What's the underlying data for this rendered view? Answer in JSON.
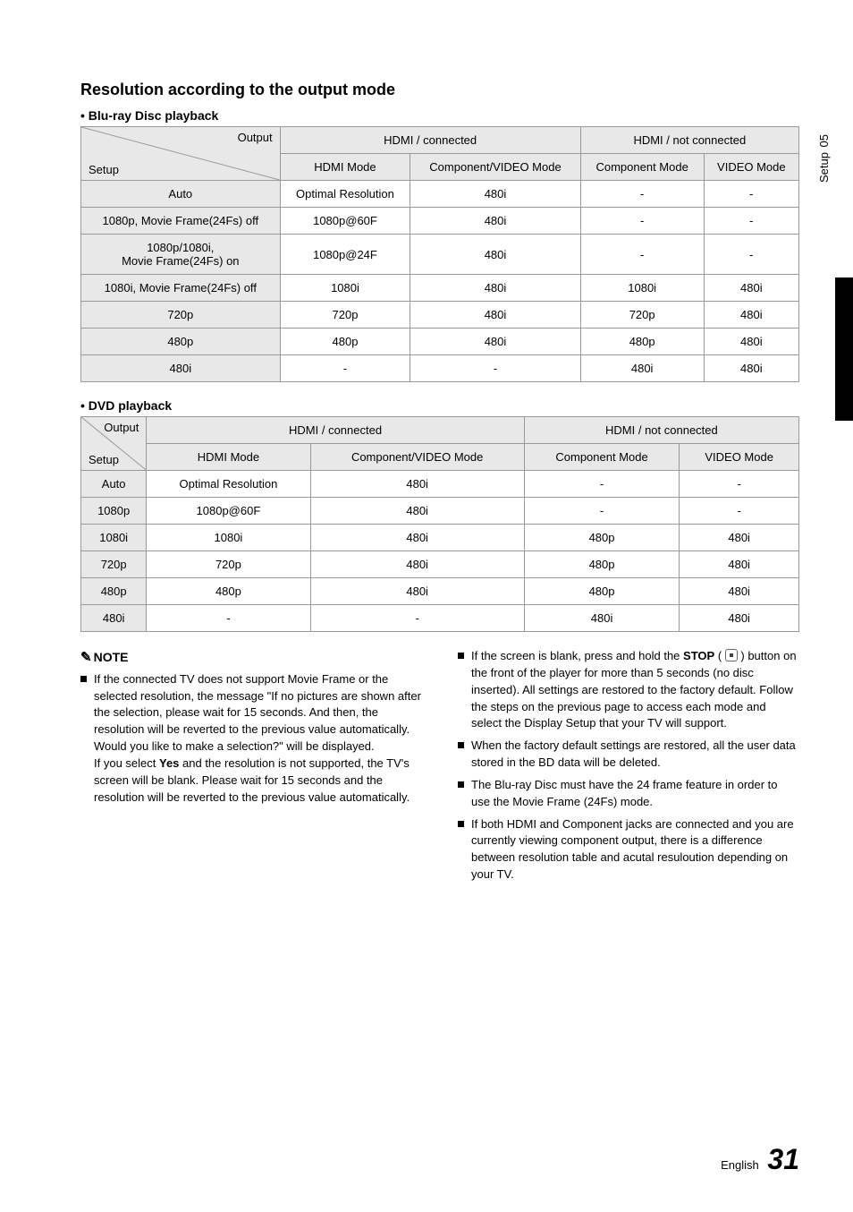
{
  "sideTab": {
    "num": "05",
    "label": "Setup"
  },
  "section": {
    "title": "Resolution according to the output mode"
  },
  "table1": {
    "caption": "• Blu-ray Disc playback",
    "diag": {
      "output": "Output",
      "setup": "Setup"
    },
    "topHeaders": [
      "HDMI / connected",
      "HDMI / not connected"
    ],
    "subHeaders": [
      "HDMI Mode",
      "Component/VIDEO Mode",
      "Component Mode",
      "VIDEO Mode"
    ],
    "rows": [
      {
        "label": "Auto",
        "cells": [
          "Optimal Resolution",
          "480i",
          "-",
          "-"
        ]
      },
      {
        "label": "1080p, Movie Frame(24Fs) off",
        "cells": [
          "1080p@60F",
          "480i",
          "-",
          "-"
        ]
      },
      {
        "label": "1080p/1080i,\nMovie Frame(24Fs) on",
        "cells": [
          "1080p@24F",
          "480i",
          "-",
          "-"
        ]
      },
      {
        "label": "1080i, Movie Frame(24Fs) off",
        "cells": [
          "1080i",
          "480i",
          "1080i",
          "480i"
        ]
      },
      {
        "label": "720p",
        "cells": [
          "720p",
          "480i",
          "720p",
          "480i"
        ]
      },
      {
        "label": "480p",
        "cells": [
          "480p",
          "480i",
          "480p",
          "480i"
        ]
      },
      {
        "label": "480i",
        "cells": [
          "-",
          "-",
          "480i",
          "480i"
        ]
      }
    ]
  },
  "table2": {
    "caption": "• DVD playback",
    "diag": {
      "output": "Output",
      "setup": "Setup"
    },
    "topHeaders": [
      "HDMI / connected",
      "HDMI / not connected"
    ],
    "subHeaders": [
      "HDMI Mode",
      "Component/VIDEO Mode",
      "Component Mode",
      "VIDEO Mode"
    ],
    "rows": [
      {
        "label": "Auto",
        "cells": [
          "Optimal Resolution",
          "480i",
          "-",
          "-"
        ]
      },
      {
        "label": "1080p",
        "cells": [
          "1080p@60F",
          "480i",
          "-",
          "-"
        ]
      },
      {
        "label": "1080i",
        "cells": [
          "1080i",
          "480i",
          "480p",
          "480i"
        ]
      },
      {
        "label": "720p",
        "cells": [
          "720p",
          "480i",
          "480p",
          "480i"
        ]
      },
      {
        "label": "480p",
        "cells": [
          "480p",
          "480i",
          "480p",
          "480i"
        ]
      },
      {
        "label": "480i",
        "cells": [
          "-",
          "-",
          "480i",
          "480i"
        ]
      }
    ]
  },
  "notes": {
    "heading": "NOTE",
    "left": [
      {
        "text": "If the connected TV does not support Movie Frame or the selected resolution, the message \"If no pictures are shown after the selection, please wait for 15 seconds. And then, the resolution will be reverted to the previous value automatically. Would you like to make a selection?\" will be displayed.\nIf you select ",
        "bold": "Yes",
        "text2": " and the resolution is not supported, the TV's screen will be blank. Please wait for 15 seconds and the resolution will be reverted to the previous value automatically."
      }
    ],
    "right": [
      {
        "pre": "If the screen is blank, press and hold the ",
        "bold": "STOP",
        "icon": true,
        "post": " button on the front of the player for more than 5 seconds (no disc inserted). All settings are restored to the factory default. Follow the steps on the previous page to access each mode and select the Display Setup that your TV will support."
      },
      {
        "text": "When the factory default settings are restored, all the user data stored in the BD data will be deleted."
      },
      {
        "text": "The Blu-ray Disc must have the 24 frame feature in order to use the Movie Frame (24Fs) mode."
      },
      {
        "text": "If both HDMI and Component jacks are connected and you are currently viewing component output, there is a difference between resolution table and acutal resuloution depending on your TV."
      }
    ]
  },
  "footer": {
    "lang": "English",
    "page": "31"
  }
}
